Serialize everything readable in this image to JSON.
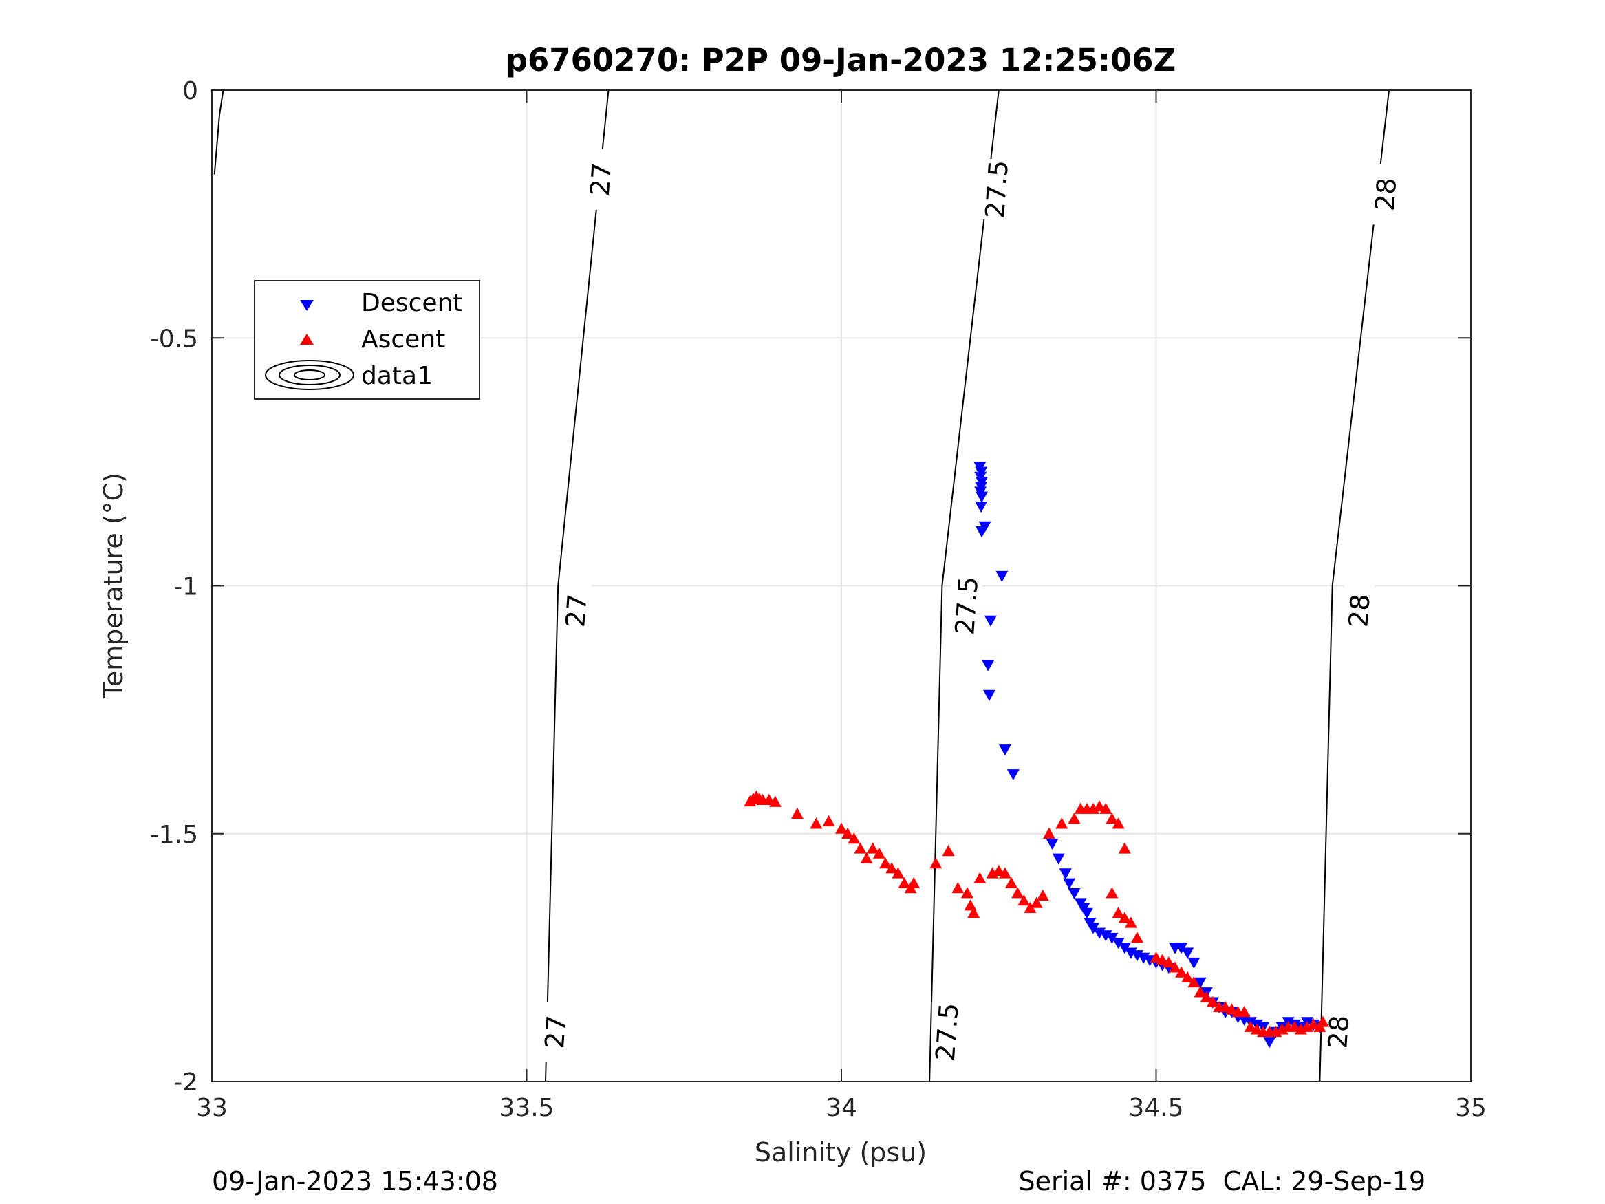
{
  "footer": {
    "left": "09-Jan-2023 15:43:08",
    "right": "Serial #: 0375  CAL: 29-Sep-19"
  },
  "chart_data": {
    "type": "scatter",
    "title": "p6760270: P2P 09-Jan-2023 12:25:06Z",
    "xlabel": "Salinity (psu)",
    "ylabel": "Temperature (°C)",
    "xlim": [
      33,
      35
    ],
    "ylim": [
      -2,
      0
    ],
    "xticks": [
      33,
      33.5,
      34,
      34.5,
      35
    ],
    "xtick_labels": [
      "33",
      "33.5",
      "34",
      "34.5",
      "35"
    ],
    "yticks": [
      0,
      -0.5,
      -1,
      -1.5,
      -2
    ],
    "ytick_labels": [
      "0",
      "-0.5",
      "-1",
      "-1.5",
      "-2"
    ],
    "grid": true,
    "legend": {
      "position": "upper-left",
      "entries": [
        "Descent",
        "Ascent",
        "data1"
      ]
    },
    "colors": {
      "descent": "#0000ff",
      "ascent": "#ff0000",
      "contour": "#000000"
    },
    "contours": [
      {
        "level": "27",
        "points": [
          [
            33.018,
            0
          ],
          [
            33.012,
            -0.05
          ],
          [
            33.004,
            -0.17
          ]
        ],
        "labels": []
      },
      {
        "level": "27",
        "points": [
          [
            33.63,
            0
          ],
          [
            33.55,
            -1
          ],
          [
            33.53,
            -2
          ]
        ],
        "labels": [
          [
            33.618,
            -0.18
          ],
          [
            33.579,
            -1.05
          ],
          [
            33.546,
            -1.9
          ]
        ]
      },
      {
        "level": "27.5",
        "points": [
          [
            34.25,
            0
          ],
          [
            34.16,
            -1
          ],
          [
            34.14,
            -2
          ]
        ],
        "labels": [
          [
            34.247,
            -0.2
          ],
          [
            34.199,
            -1.04
          ],
          [
            34.168,
            -1.9
          ]
        ]
      },
      {
        "level": "28",
        "points": [
          [
            34.87,
            0
          ],
          [
            34.78,
            -1
          ],
          [
            34.76,
            -2
          ]
        ],
        "labels": [
          [
            34.865,
            -0.21
          ],
          [
            34.823,
            -1.05
          ],
          [
            34.79,
            -1.9
          ]
        ]
      }
    ],
    "series": [
      {
        "name": "Descent",
        "marker": "triangle-down",
        "color": "#0000ff",
        "points": [
          [
            34.22,
            -0.76
          ],
          [
            34.222,
            -0.77
          ],
          [
            34.221,
            -0.78
          ],
          [
            34.223,
            -0.79
          ],
          [
            34.222,
            -0.8
          ],
          [
            34.221,
            -0.81
          ],
          [
            34.223,
            -0.82
          ],
          [
            34.222,
            -0.84
          ],
          [
            34.223,
            -0.89
          ],
          [
            34.228,
            -0.88
          ],
          [
            34.255,
            -0.98
          ],
          [
            34.237,
            -1.07
          ],
          [
            34.233,
            -1.16
          ],
          [
            34.235,
            -1.22
          ],
          [
            34.26,
            -1.33
          ],
          [
            34.273,
            -1.38
          ],
          [
            34.335,
            -1.52
          ],
          [
            34.345,
            -1.55
          ],
          [
            34.356,
            -1.58
          ],
          [
            34.362,
            -1.6
          ],
          [
            34.37,
            -1.62
          ],
          [
            34.38,
            -1.64
          ],
          [
            34.385,
            -1.65
          ],
          [
            34.39,
            -1.66
          ],
          [
            34.395,
            -1.68
          ],
          [
            34.4,
            -1.69
          ],
          [
            34.41,
            -1.7
          ],
          [
            34.42,
            -1.705
          ],
          [
            34.43,
            -1.71
          ],
          [
            34.44,
            -1.72
          ],
          [
            34.45,
            -1.73
          ],
          [
            34.46,
            -1.74
          ],
          [
            34.47,
            -1.745
          ],
          [
            34.48,
            -1.75
          ],
          [
            34.49,
            -1.755
          ],
          [
            34.5,
            -1.76
          ],
          [
            34.51,
            -1.765
          ],
          [
            34.52,
            -1.77
          ],
          [
            34.53,
            -1.73
          ],
          [
            34.54,
            -1.73
          ],
          [
            34.55,
            -1.74
          ],
          [
            34.56,
            -1.76
          ],
          [
            34.57,
            -1.8
          ],
          [
            34.58,
            -1.82
          ],
          [
            34.59,
            -1.84
          ],
          [
            34.6,
            -1.85
          ],
          [
            34.61,
            -1.86
          ],
          [
            34.62,
            -1.86
          ],
          [
            34.63,
            -1.87
          ],
          [
            34.64,
            -1.875
          ],
          [
            34.65,
            -1.88
          ],
          [
            34.66,
            -1.885
          ],
          [
            34.67,
            -1.89
          ],
          [
            34.68,
            -1.92
          ],
          [
            34.69,
            -1.9
          ],
          [
            34.7,
            -1.89
          ],
          [
            34.71,
            -1.88
          ],
          [
            34.72,
            -1.885
          ],
          [
            34.73,
            -1.89
          ],
          [
            34.74,
            -1.88
          ],
          [
            34.75,
            -1.885
          ],
          [
            34.76,
            -1.89
          ]
        ]
      },
      {
        "name": "Ascent",
        "marker": "triangle-up",
        "color": "#ff0000",
        "points": [
          [
            33.855,
            -1.435
          ],
          [
            33.86,
            -1.43
          ],
          [
            33.865,
            -1.425
          ],
          [
            33.87,
            -1.43
          ],
          [
            33.875,
            -1.432
          ],
          [
            33.885,
            -1.432
          ],
          [
            33.895,
            -1.436
          ],
          [
            33.93,
            -1.46
          ],
          [
            33.96,
            -1.48
          ],
          [
            33.98,
            -1.475
          ],
          [
            34.0,
            -1.49
          ],
          [
            34.01,
            -1.5
          ],
          [
            34.02,
            -1.51
          ],
          [
            34.03,
            -1.53
          ],
          [
            34.04,
            -1.55
          ],
          [
            34.05,
            -1.53
          ],
          [
            34.06,
            -1.54
          ],
          [
            34.07,
            -1.56
          ],
          [
            34.08,
            -1.57
          ],
          [
            34.09,
            -1.58
          ],
          [
            34.1,
            -1.6
          ],
          [
            34.11,
            -1.61
          ],
          [
            34.115,
            -1.6
          ],
          [
            34.15,
            -1.56
          ],
          [
            34.17,
            -1.535
          ],
          [
            34.185,
            -1.61
          ],
          [
            34.2,
            -1.62
          ],
          [
            34.205,
            -1.645
          ],
          [
            34.21,
            -1.66
          ],
          [
            34.22,
            -1.59
          ],
          [
            34.24,
            -1.58
          ],
          [
            34.25,
            -1.575
          ],
          [
            34.26,
            -1.58
          ],
          [
            34.27,
            -1.6
          ],
          [
            34.28,
            -1.62
          ],
          [
            34.29,
            -1.635
          ],
          [
            34.3,
            -1.65
          ],
          [
            34.31,
            -1.64
          ],
          [
            34.32,
            -1.625
          ],
          [
            34.33,
            -1.5
          ],
          [
            34.35,
            -1.48
          ],
          [
            34.37,
            -1.47
          ],
          [
            34.38,
            -1.45
          ],
          [
            34.39,
            -1.45
          ],
          [
            34.4,
            -1.45
          ],
          [
            34.41,
            -1.445
          ],
          [
            34.42,
            -1.45
          ],
          [
            34.43,
            -1.47
          ],
          [
            34.44,
            -1.48
          ],
          [
            34.45,
            -1.53
          ],
          [
            34.43,
            -1.62
          ],
          [
            34.44,
            -1.66
          ],
          [
            34.45,
            -1.67
          ],
          [
            34.46,
            -1.68
          ],
          [
            34.47,
            -1.71
          ],
          [
            34.5,
            -1.75
          ],
          [
            34.51,
            -1.755
          ],
          [
            34.52,
            -1.76
          ],
          [
            34.53,
            -1.77
          ],
          [
            34.54,
            -1.78
          ],
          [
            34.55,
            -1.79
          ],
          [
            34.56,
            -1.8
          ],
          [
            34.57,
            -1.82
          ],
          [
            34.58,
            -1.83
          ],
          [
            34.59,
            -1.84
          ],
          [
            34.6,
            -1.85
          ],
          [
            34.61,
            -1.85
          ],
          [
            34.62,
            -1.855
          ],
          [
            34.63,
            -1.86
          ],
          [
            34.64,
            -1.86
          ],
          [
            34.65,
            -1.89
          ],
          [
            34.66,
            -1.895
          ],
          [
            34.67,
            -1.9
          ],
          [
            34.68,
            -1.9
          ],
          [
            34.69,
            -1.9
          ],
          [
            34.7,
            -1.895
          ],
          [
            34.71,
            -1.89
          ],
          [
            34.72,
            -1.89
          ],
          [
            34.73,
            -1.895
          ],
          [
            34.74,
            -1.89
          ],
          [
            34.75,
            -1.885
          ],
          [
            34.76,
            -1.89
          ],
          [
            34.765,
            -1.88
          ]
        ]
      }
    ]
  }
}
